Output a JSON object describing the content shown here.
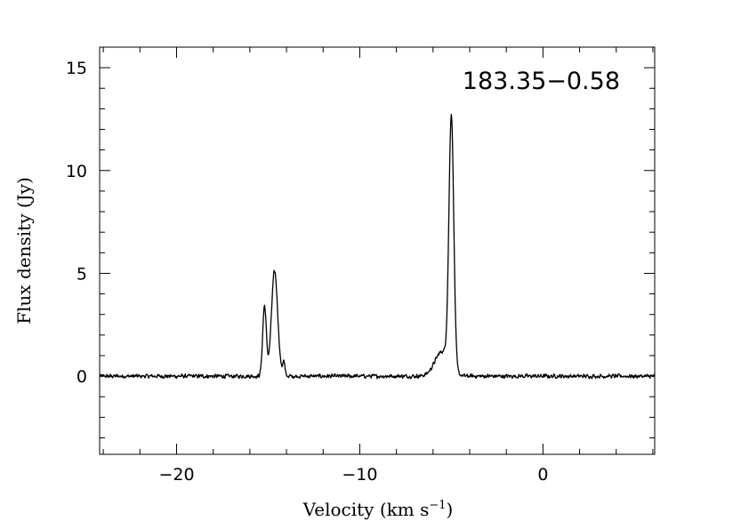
{
  "chart_data": {
    "type": "line",
    "title": "",
    "annotation": "183.35−0.58",
    "xlabel": "Velocity (km s",
    "xlabel_sup": "−1",
    "xlabel_close": ")",
    "ylabel": "Flux density (Jy)",
    "xlim": [
      -24.2,
      6.1
    ],
    "ylim": [
      -3.8,
      16.0
    ],
    "x_ticks": [
      {
        "value": -20,
        "label": "−20"
      },
      {
        "value": -10,
        "label": "−10"
      },
      {
        "value": 0,
        "label": "0"
      }
    ],
    "y_ticks": [
      {
        "value": 0,
        "label": "0"
      },
      {
        "value": 5,
        "label": "5"
      },
      {
        "value": 10,
        "label": "10"
      },
      {
        "value": 15,
        "label": "15"
      }
    ],
    "x_minor_step": 2,
    "y_minor_step": 1,
    "grid": false,
    "series": [
      {
        "color": "#000000",
        "baseline_noise": 0.12,
        "components": [
          {
            "center": -15.2,
            "amplitude": 3.4,
            "sigma": 0.1
          },
          {
            "center": -14.65,
            "amplitude": 5.1,
            "sigma": 0.17
          },
          {
            "center": -14.15,
            "amplitude": 0.7,
            "sigma": 0.06
          },
          {
            "center": -5.5,
            "amplitude": 1.2,
            "sigma": 0.4
          },
          {
            "center": -5.0,
            "amplitude": 12.2,
            "sigma": 0.13
          }
        ]
      }
    ]
  }
}
